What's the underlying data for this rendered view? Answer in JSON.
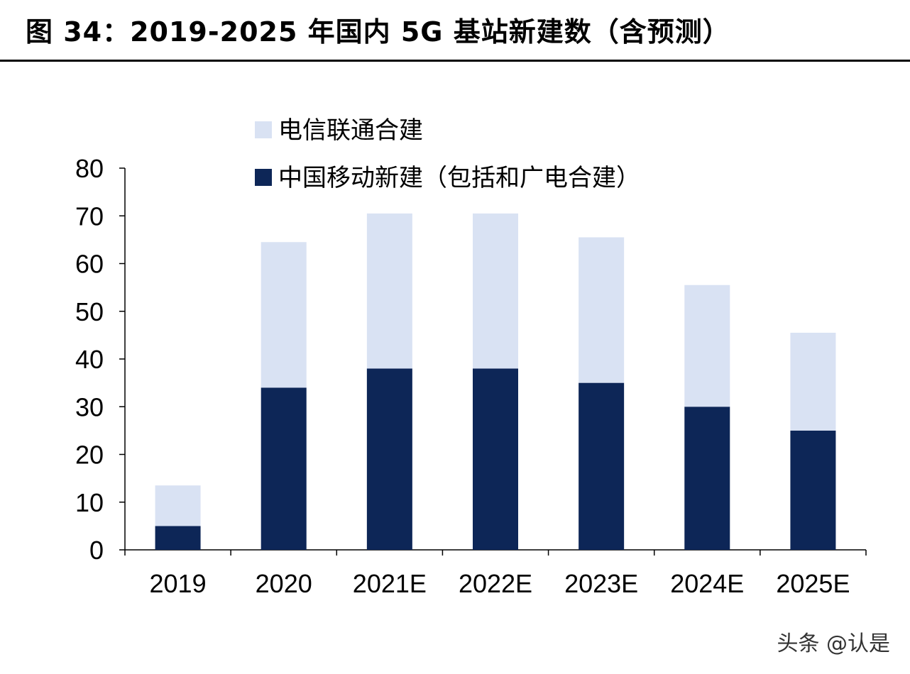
{
  "title": "图 34：2019-2025 年国内 5G 基站新建数（含预测）",
  "watermark": "头条 @认是",
  "colors": {
    "series_top": "#d9e2f3",
    "series_bottom": "#0d2657",
    "axis": "#000000",
    "text": "#000000"
  },
  "chart_data": {
    "type": "bar",
    "stacked": true,
    "categories": [
      "2019",
      "2020",
      "2021E",
      "2022E",
      "2023E",
      "2024E",
      "2025E"
    ],
    "series": [
      {
        "name": "中国移动新建（包括和广电合建）",
        "values": [
          5,
          34,
          38,
          38,
          35,
          30,
          25
        ]
      },
      {
        "name": "电信联通合建",
        "values": [
          8.5,
          30.5,
          32.5,
          32.5,
          30.5,
          25.5,
          20.5
        ]
      }
    ],
    "yticks": [
      "0",
      "10",
      "20",
      "30",
      "40",
      "50",
      "60",
      "70",
      "80"
    ],
    "ylim": [
      0,
      80
    ],
    "legend": [
      "电信联通合建",
      "中国移动新建（包括和广电合建）"
    ],
    "legend_position": "top-left",
    "grid": false,
    "xlabel": "",
    "ylabel": ""
  }
}
